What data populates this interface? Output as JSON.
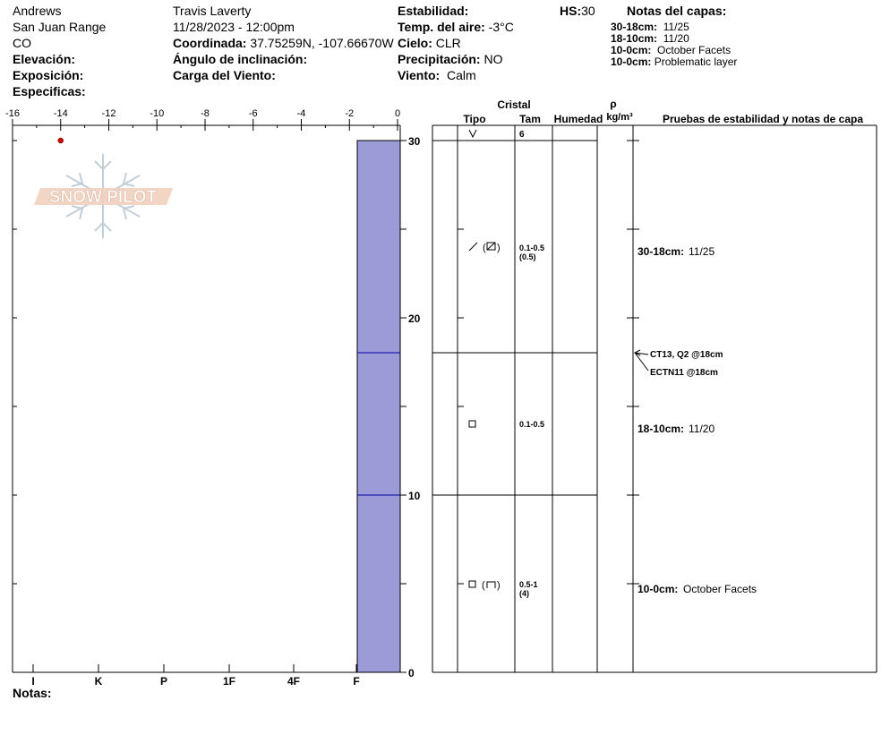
{
  "header": {
    "location_name": "Andrews",
    "range": "San Juan Range",
    "state": "CO",
    "elevation_label": "Elevación:",
    "exposure_label": "Exposición:",
    "specifics_label": "Especificas:",
    "observer": "Travis Laverty",
    "datetime": "11/28/2023 - 12:00pm",
    "coord_label": "Coordinada:",
    "coord_value": "37.75259N, -107.66670W",
    "slope_label": "Ángulo de inclinación:",
    "wind_load_label": "Carga del Viento:",
    "stability_label": "Estabilidad:",
    "air_temp_label": "Temp. del aire:",
    "air_temp_value": "-3°C",
    "sky_label": "Cielo:",
    "sky_value": "CLR",
    "precip_label": "Precipitación:",
    "precip_value": "NO",
    "wind_label": "Viento:",
    "wind_value": "Calm",
    "hs_label": "HS:",
    "hs_value": "30",
    "layer_notes_title": "Notas del capas:",
    "layer_notes": [
      {
        "range": "30-18cm:",
        "text": "11/25"
      },
      {
        "range": "18-10cm:",
        "text": "11/20"
      },
      {
        "range": "10-0cm:",
        "text": "October Facets"
      },
      {
        "range": "10-0cm:",
        "text": "Problematic layer"
      }
    ]
  },
  "logo": {
    "text": "SNOW PILOT"
  },
  "footer": {
    "notes_label": "Notas:"
  },
  "columns": {
    "cristal": "Cristal",
    "tipo": "Tipo",
    "tam": "Tam",
    "humedad": "Humedad",
    "rho": "ρ",
    "rho_unit": "kg/m³",
    "tests_header": "Pruebas de estabilidad y notas de capa"
  },
  "chart_data": {
    "type": "snow_profile",
    "temperature_axis": {
      "ticks": [
        "-16",
        "-14",
        "-12",
        "-10",
        "-8",
        "-6",
        "-4",
        "-2",
        "0"
      ],
      "xlim": [
        -16,
        0
      ]
    },
    "height_axis": {
      "ticks": [
        "0",
        "10",
        "20",
        "30"
      ],
      "ylim": [
        0,
        30
      ]
    },
    "hardness_axis": {
      "ticks": [
        "I",
        "K",
        "P",
        "1F",
        "4F",
        "F"
      ]
    },
    "temperature_points": [
      {
        "temp": -14,
        "height": 30
      }
    ],
    "layers": [
      {
        "top": 30,
        "bottom": 18,
        "hardness": "F",
        "grain": "decomposing fragments (facets)",
        "size": "0.1-0.5",
        "size_max": "(0.5)",
        "note_range": "30-18cm:",
        "note": "11/25"
      },
      {
        "top": 18,
        "bottom": 10,
        "hardness": "F",
        "grain": "faceted",
        "size": "0.1-0.5",
        "size_max": "",
        "note_range": "18-10cm:",
        "note": "11/20"
      },
      {
        "top": 10,
        "bottom": 0,
        "hardness": "F",
        "grain": "faceted (depth hoar)",
        "size": "0.5-1",
        "size_max": "(4)",
        "note_range": "10-0cm:",
        "note": "October Facets"
      }
    ],
    "surface": {
      "grain": "surface hoar",
      "size": "6"
    },
    "stability_tests": [
      {
        "text": "CT13, Q2 @18cm",
        "height": 18
      },
      {
        "text": "ECTN11 @18cm",
        "height": 18
      }
    ],
    "colors": {
      "hardness_fill": "#9b9bd7",
      "layer_line": "#0000aa",
      "temp_point": "#cc0000"
    }
  }
}
